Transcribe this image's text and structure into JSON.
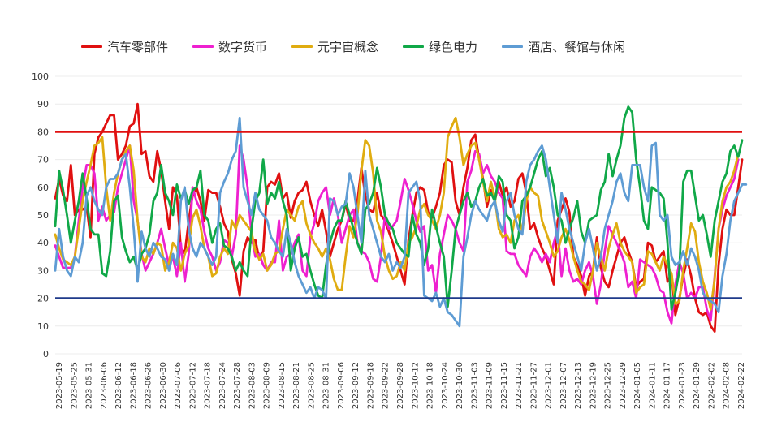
{
  "chart_data": {
    "type": "line",
    "ylim": [
      0,
      100
    ],
    "y_ticks": [
      0,
      10,
      20,
      30,
      40,
      50,
      60,
      70,
      80,
      90,
      100
    ],
    "x_tick_labels": [
      "2023-05-19",
      "2023-05-25",
      "2023-05-31",
      "2023-06-06",
      "2023-06-12",
      "2023-06-18",
      "2023-06-26",
      "2023-06-30",
      "2023-07-06",
      "2023-07-12",
      "2023-07-18",
      "2023-07-24",
      "2023-07-28",
      "2023-08-03",
      "2023-08-09",
      "2023-08-15",
      "2023-08-21",
      "2023-08-25",
      "2023-08-31",
      "2023-09-06",
      "2023-09-12",
      "2023-09-18",
      "2023-09-22",
      "2023-09-28",
      "2023-10-12",
      "2023-10-18",
      "2023-10-24",
      "2023-10-30",
      "2023-11-03",
      "2023-11-09",
      "2023-11-15",
      "2023-11-21",
      "2023-11-27",
      "2023-12-01",
      "2023-12-07",
      "2023-12-13",
      "2023-12-19",
      "2023-12-25",
      "2023-12-29",
      "2024-01-05",
      "2024-01-11",
      "2024-01-17",
      "2024-01-23",
      "2024-01-29",
      "2024-02-02",
      "2024-02-08",
      "2024-02-22"
    ],
    "reference_lines": [
      {
        "value": 80,
        "color": "#e01010"
      },
      {
        "value": 20,
        "color": "#1f3a8a"
      }
    ],
    "grid": true,
    "legend_position": "top",
    "series": [
      {
        "name": "汽车零部件",
        "color": "#e01010",
        "values": [
          56,
          63,
          57,
          55,
          68,
          50,
          52,
          52,
          53,
          42,
          72,
          78,
          80,
          83,
          86,
          86,
          70,
          72,
          75,
          82,
          83,
          90,
          72,
          73,
          64,
          62,
          73,
          66,
          55,
          45,
          60,
          57,
          38,
          36,
          48,
          57,
          60,
          55,
          48,
          59,
          58,
          58,
          53,
          47,
          44,
          34,
          29,
          21,
          37,
          42,
          40,
          41,
          34,
          37,
          60,
          62,
          61,
          65,
          56,
          58,
          49,
          55,
          58,
          59,
          62,
          55,
          50,
          46,
          52,
          44,
          35,
          40,
          45,
          48,
          54,
          48,
          48,
          55,
          67,
          57,
          52,
          51,
          58,
          50,
          48,
          44,
          40,
          35,
          30,
          25,
          41,
          50,
          58,
          60,
          59,
          51,
          49,
          53,
          58,
          68,
          70,
          69,
          55,
          50,
          60,
          67,
          77,
          79,
          70,
          63,
          53,
          59,
          55,
          62,
          57,
          60,
          53,
          55,
          63,
          65,
          58,
          45,
          47,
          42,
          38,
          35,
          30,
          25,
          48,
          52,
          56,
          51,
          35,
          32,
          28,
          21,
          28,
          30,
          42,
          31,
          26,
          24,
          30,
          35,
          40,
          42,
          37,
          33,
          24,
          26,
          27,
          40,
          39,
          33,
          35,
          37,
          26,
          29,
          14,
          20,
          28,
          34,
          28,
          20,
          15,
          14,
          15,
          10,
          8,
          32,
          45,
          52,
          50,
          50,
          60,
          70
        ]
      },
      {
        "name": "数字货币",
        "color": "#ee20d0",
        "values": [
          39,
          35,
          31,
          31,
          31,
          35,
          48,
          60,
          68,
          68,
          65,
          48,
          53,
          48,
          50,
          51,
          60,
          65,
          70,
          75,
          55,
          48,
          36,
          30,
          33,
          36,
          40,
          45,
          38,
          32,
          35,
          28,
          40,
          26,
          36,
          60,
          55,
          52,
          44,
          38,
          35,
          30,
          33,
          41,
          40,
          35,
          43,
          75,
          70,
          60,
          43,
          35,
          36,
          32,
          30,
          33,
          33,
          48,
          30,
          35,
          36,
          40,
          43,
          30,
          28,
          42,
          47,
          55,
          58,
          60,
          50,
          56,
          50,
          40,
          45,
          50,
          52,
          40,
          37,
          36,
          33,
          27,
          26,
          35,
          50,
          45,
          46,
          48,
          55,
          63,
          59,
          54,
          48,
          44,
          46,
          30,
          32,
          22,
          36,
          43,
          50,
          48,
          45,
          40,
          37,
          62,
          66,
          73,
          72,
          65,
          68,
          64,
          62,
          58,
          56,
          37,
          36,
          36,
          32,
          30,
          28,
          35,
          38,
          36,
          33,
          36,
          33,
          40,
          45,
          28,
          38,
          30,
          26,
          27,
          25,
          30,
          33,
          28,
          18,
          25,
          37,
          46,
          43,
          40,
          37,
          33,
          24,
          26,
          20,
          34,
          33,
          32,
          31,
          28,
          23,
          22,
          15,
          11,
          25,
          33,
          29,
          20,
          22,
          20,
          24,
          24,
          16,
          12,
          28,
          45,
          52,
          57,
          60,
          63,
          70
        ]
      },
      {
        "name": "元宇宙概念",
        "color": "#e0ac10",
        "values": [
          43,
          38,
          34,
          33,
          32,
          35,
          45,
          55,
          62,
          68,
          75,
          76,
          78,
          60,
          48,
          58,
          65,
          70,
          73,
          75,
          66,
          48,
          35,
          33,
          38,
          36,
          40,
          39,
          30,
          33,
          40,
          38,
          30,
          36,
          39,
          49,
          52,
          46,
          38,
          35,
          28,
          29,
          35,
          38,
          36,
          48,
          45,
          50,
          48,
          46,
          44,
          37,
          34,
          36,
          30,
          32,
          36,
          37,
          45,
          52,
          50,
          48,
          53,
          55,
          47,
          43,
          40,
          38,
          35,
          38,
          34,
          27,
          23,
          23,
          35,
          46,
          42,
          50,
          66,
          77,
          75,
          65,
          48,
          44,
          35,
          30,
          27,
          28,
          33,
          30,
          40,
          42,
          46,
          52,
          54,
          50,
          48,
          45,
          50,
          58,
          78,
          82,
          85,
          78,
          68,
          72,
          75,
          76,
          70,
          62,
          55,
          62,
          56,
          45,
          42,
          43,
          40,
          48,
          50,
          44,
          55,
          60,
          58,
          57,
          48,
          44,
          40,
          35,
          37,
          42,
          45,
          41,
          35,
          30,
          26,
          25,
          23,
          30,
          40,
          35,
          30,
          38,
          43,
          47,
          40,
          37,
          35,
          33,
          22,
          24,
          25,
          37,
          36,
          33,
          30,
          35,
          32,
          29,
          18,
          19,
          30,
          38,
          47,
          44,
          33,
          26,
          22,
          16,
          27,
          45,
          55,
          60,
          62,
          66,
          72
        ]
      },
      {
        "name": "绿色电力",
        "color": "#10a848",
        "values": [
          46,
          66,
          59,
          50,
          40,
          48,
          55,
          65,
          56,
          45,
          43,
          43,
          29,
          28,
          37,
          55,
          57,
          42,
          37,
          33,
          35,
          30,
          36,
          38,
          43,
          55,
          58,
          68,
          58,
          55,
          50,
          61,
          56,
          59,
          54,
          59,
          60,
          66,
          50,
          48,
          40,
          45,
          47,
          39,
          38,
          35,
          30,
          33,
          30,
          28,
          45,
          55,
          58,
          70,
          54,
          58,
          56,
          62,
          55,
          50,
          30,
          38,
          42,
          35,
          36,
          30,
          25,
          21,
          20,
          32,
          40,
          45,
          48,
          48,
          55,
          50,
          45,
          40,
          36,
          52,
          54,
          58,
          67,
          60,
          50,
          47,
          45,
          40,
          38,
          36,
          35,
          50,
          43,
          40,
          32,
          38,
          52,
          46,
          40,
          35,
          17,
          30,
          45,
          50,
          55,
          58,
          53,
          55,
          60,
          63,
          57,
          58,
          55,
          64,
          62,
          50,
          48,
          38,
          42,
          55,
          57,
          60,
          65,
          70,
          73,
          64,
          67,
          60,
          50,
          48,
          40,
          45,
          49,
          55,
          44,
          40,
          48,
          49,
          50,
          59,
          62,
          72,
          64,
          70,
          75,
          85,
          89,
          87,
          70,
          60,
          48,
          45,
          60,
          59,
          58,
          56,
          40,
          16,
          22,
          30,
          62,
          66,
          66,
          57,
          48,
          50,
          43,
          35,
          48,
          55,
          62,
          65,
          73,
          75,
          71,
          77
        ]
      },
      {
        "name": "酒店、餐馆与休闲",
        "color": "#5e9cd4",
        "values": [
          30,
          45,
          35,
          30,
          28,
          35,
          33,
          40,
          57,
          60,
          55,
          52,
          50,
          60,
          63,
          63,
          65,
          70,
          72,
          60,
          45,
          26,
          44,
          38,
          35,
          40,
          38,
          35,
          34,
          30,
          36,
          32,
          55,
          60,
          45,
          38,
          35,
          40,
          38,
          35,
          32,
          35,
          58,
          62,
          65,
          70,
          73,
          85,
          60,
          55,
          50,
          58,
          52,
          50,
          48,
          42,
          40,
          37,
          35,
          45,
          40,
          33,
          28,
          25,
          22,
          24,
          20,
          24,
          23,
          20,
          56,
          55,
          50,
          53,
          54,
          65,
          60,
          50,
          40,
          66,
          50,
          45,
          40,
          35,
          33,
          36,
          30,
          33,
          31,
          35,
          58,
          60,
          62,
          55,
          21,
          20,
          19,
          22,
          17,
          20,
          15,
          14,
          12,
          10,
          35,
          42,
          50,
          55,
          52,
          50,
          48,
          53,
          55,
          48,
          44,
          55,
          58,
          50,
          45,
          43,
          62,
          68,
          70,
          73,
          75,
          70,
          60,
          50,
          40,
          58,
          52,
          45,
          40,
          35,
          30,
          40,
          45,
          38,
          30,
          35,
          45,
          50,
          55,
          62,
          65,
          58,
          55,
          68,
          68,
          68,
          60,
          55,
          75,
          76,
          50,
          48,
          50,
          35,
          32,
          33,
          37,
          32,
          38,
          35,
          30,
          22,
          20,
          19,
          18,
          15,
          28,
          36,
          48,
          55,
          58,
          61,
          61
        ]
      }
    ]
  }
}
